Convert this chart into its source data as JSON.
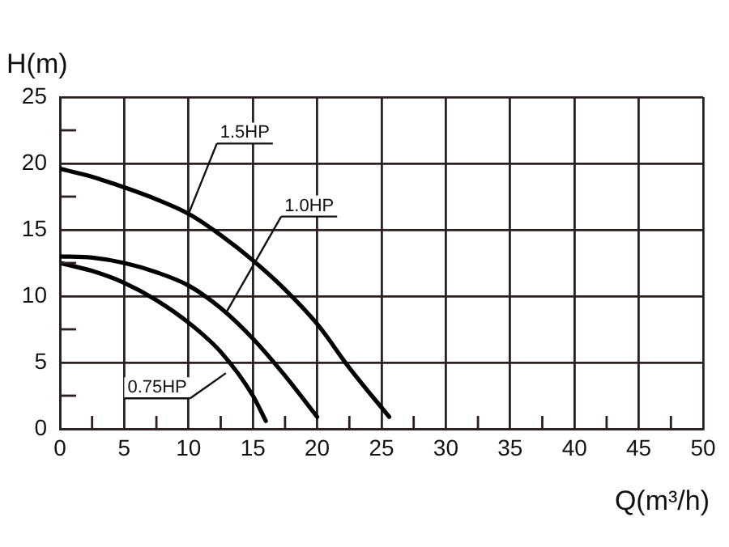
{
  "chart_data": {
    "type": "line",
    "xlabel": "Q(m³/h)",
    "ylabel": "H(m)",
    "xlim": [
      0,
      50
    ],
    "ylim": [
      0,
      25
    ],
    "xticks": [
      0,
      {
        "value": 2.5,
        "label": null
      },
      5,
      {
        "value": 7.5,
        "label": null
      },
      10,
      {
        "value": 12.5,
        "label": null
      },
      15,
      {
        "value": 17.5,
        "label": null
      },
      20,
      {
        "value": 22.5,
        "label": null
      },
      25,
      {
        "value": 27.5,
        "label": null
      },
      30,
      {
        "value": 32.5,
        "label": null
      },
      35,
      {
        "value": 37.5,
        "label": null
      },
      40,
      {
        "value": 42.5,
        "label": null
      },
      45,
      {
        "value": 47.5,
        "label": null
      },
      50
    ],
    "yticks": [
      0,
      {
        "value": 2.5,
        "label": null
      },
      5,
      {
        "value": 7.5,
        "label": null
      },
      10,
      {
        "value": 12.5,
        "label": null
      },
      15,
      {
        "value": 17.5,
        "label": null
      },
      20,
      {
        "value": 22.5,
        "label": null
      },
      25
    ],
    "grid": true,
    "marker": "none",
    "line_style": "solid",
    "legend": false,
    "series": [
      {
        "name": "1.5HP",
        "color": "#000000",
        "x": [
          0,
          2.5,
          5,
          7.5,
          10,
          12.5,
          15,
          17.5,
          20,
          22.5,
          25.6
        ],
        "values": [
          19.6,
          19.0,
          18.2,
          17.3,
          16.2,
          14.6,
          12.7,
          10.5,
          7.9,
          4.6,
          0.9
        ]
      },
      {
        "name": "1.0HP",
        "color": "#000000",
        "x": [
          0,
          2.5,
          5,
          7.5,
          10,
          12.5,
          15,
          17.5,
          20
        ],
        "values": [
          13.0,
          12.9,
          12.5,
          11.8,
          10.8,
          9.1,
          6.8,
          4.0,
          0.9
        ]
      },
      {
        "name": "0.75HP",
        "color": "#000000",
        "x": [
          0,
          2.5,
          5,
          7.5,
          10,
          12.5,
          15,
          16
        ],
        "values": [
          12.5,
          11.9,
          11.0,
          9.7,
          8.0,
          5.8,
          2.5,
          0.6
        ]
      }
    ]
  }
}
